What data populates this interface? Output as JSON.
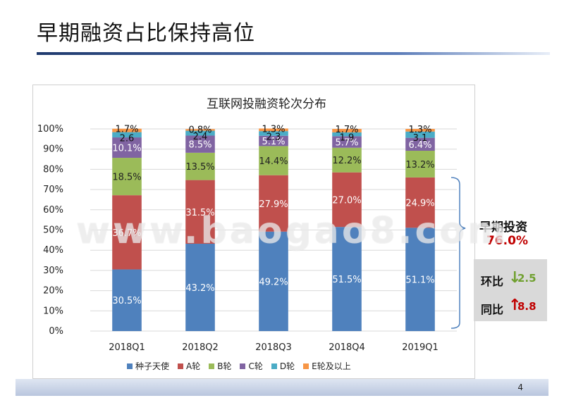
{
  "slide": {
    "title": "早期融资占比保持高位",
    "page_number": "4",
    "watermark": "www.baogao8.com"
  },
  "side": {
    "early_label": "早期投资",
    "early_value": "76.0%",
    "qoq_label": "环比",
    "qoq_value": "2.5",
    "yoy_label": "同比",
    "yoy_value": "8.8",
    "colors": {
      "early": "#c00000",
      "qoq": "#70a030",
      "yoy": "#c00000"
    }
  },
  "chart_data": {
    "type": "bar",
    "stacked": true,
    "title": "互联网投融资轮次分布",
    "categories": [
      "2018Q1",
      "2018Q2",
      "2018Q3",
      "2018Q4",
      "2019Q1"
    ],
    "y_ticks": [
      "0%",
      "10%",
      "20%",
      "30%",
      "40%",
      "50%",
      "60%",
      "70%",
      "80%",
      "90%",
      "100%"
    ],
    "ylim": [
      0,
      100
    ],
    "series": [
      {
        "name": "种子天使",
        "color": "#4f81bd",
        "values": [
          30.5,
          43.2,
          49.2,
          51.5,
          51.1
        ],
        "labels": [
          "30.5%",
          "43.2%",
          "49.2%",
          "51.5%",
          "51.1%"
        ]
      },
      {
        "name": "A轮",
        "color": "#c0504d",
        "values": [
          36.7,
          31.5,
          27.9,
          27.0,
          24.9
        ],
        "labels": [
          "36.7%",
          "31.5%",
          "27.9%",
          "27.0%",
          "24.9%"
        ]
      },
      {
        "name": "B轮",
        "color": "#9bbb59",
        "values": [
          18.5,
          13.5,
          14.4,
          12.2,
          13.2
        ],
        "labels": [
          "18.5%",
          "13.5%",
          "14.4%",
          "12.2%",
          "13.2%"
        ]
      },
      {
        "name": "C轮",
        "color": "#8064a2",
        "values": [
          10.1,
          8.5,
          5.1,
          5.7,
          6.4
        ],
        "labels": [
          "10.1%",
          "8.5%",
          "5.1%",
          "5.7%",
          "6.4%"
        ]
      },
      {
        "name": "D轮",
        "color": "#4bacc6",
        "values": [
          2.6,
          2.4,
          2.3,
          1.9,
          3.1
        ],
        "labels": [
          "2.6",
          "2.4",
          "2.3",
          "1.9",
          "3.1"
        ]
      },
      {
        "name": "E轮及以上",
        "color": "#f79646",
        "values": [
          1.7,
          0.8,
          1.3,
          1.7,
          1.3
        ],
        "labels": [
          "1.7%",
          "0.8%",
          "1.3%",
          "1.7%",
          "1.3%"
        ]
      }
    ],
    "legend_position": "bottom",
    "grid": true
  }
}
